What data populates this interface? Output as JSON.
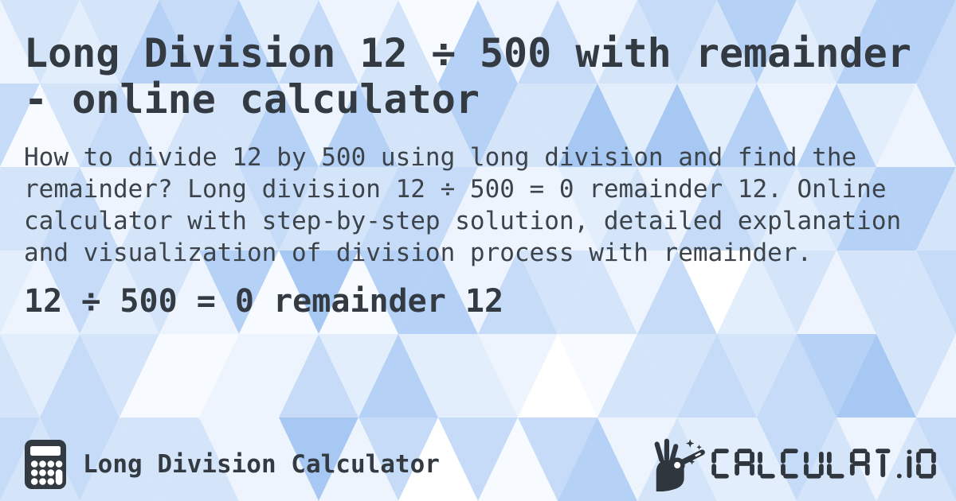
{
  "card": {
    "title": "Long Division 12 ÷ 500 with remainder - online calculator",
    "description": "How to divide 12 by 500 using long division and find the remainder? Long division 12 ÷ 500 = 0 remainder 12. Online calculator with step-by-step solution, detailed explanation and visualization of division process with remainder.",
    "result": "12 ÷ 500 = 0 remainder 12"
  },
  "footer": {
    "app_label": "Long Division Calculator",
    "brand": "CALCULAT.IO",
    "icons": {
      "left": "calculator-icon",
      "right": "magic-wand-hand-icon"
    }
  },
  "colors": {
    "text_primary": "#333a41",
    "text_secondary": "#3d434a",
    "logo": "#30363d",
    "pattern": [
      "#ffffff",
      "#f7faff",
      "#eef4fd",
      "#e2eefb",
      "#d4e5fa",
      "#c5dbf8",
      "#b5d1f6",
      "#a6c8f3"
    ]
  }
}
